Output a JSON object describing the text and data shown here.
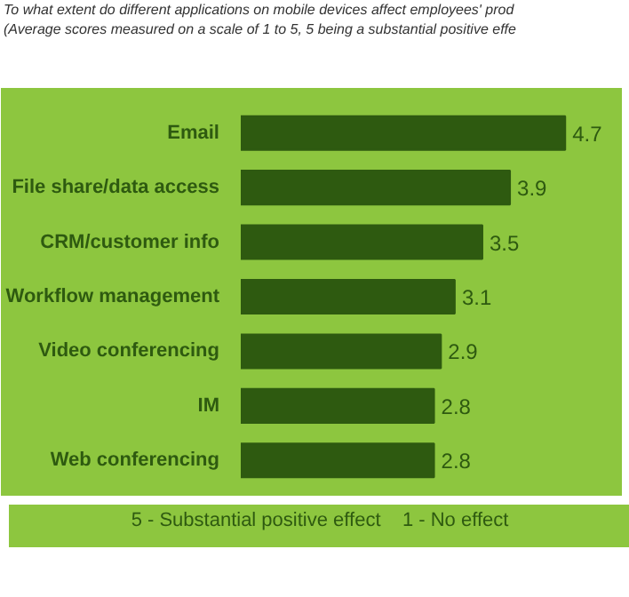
{
  "chart_data": {
    "type": "bar",
    "orientation": "horizontal",
    "title": "To what extent do different applications on mobile devices affect employees' prod",
    "subtitle": "(Average scores measured on a scale of 1 to 5, 5 being a substantial positive effe",
    "categories": [
      "Email",
      "File share/data access",
      "CRM/customer info",
      "Workflow management",
      "Video conferencing",
      "IM",
      "Web conferencing"
    ],
    "values": [
      4.7,
      3.9,
      3.5,
      3.1,
      2.9,
      2.8,
      2.8
    ],
    "color": "#2e5a10",
    "data_labels": true,
    "annotations": [
      "5 - Substantial positive effect    1 - No effect"
    ]
  }
}
